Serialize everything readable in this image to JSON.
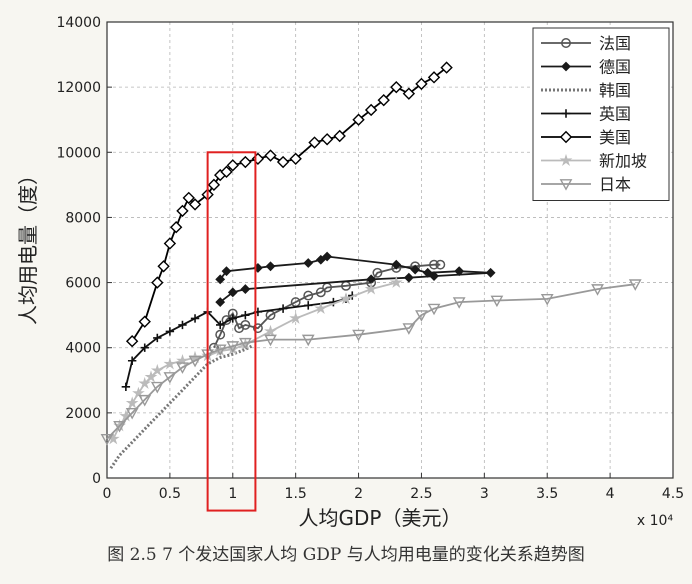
{
  "caption": "图 2.5 7 个发达国家人均 GDP 与人均用电量的变化关系趋势图",
  "chart_data": {
    "type": "line",
    "title": "",
    "xlabel": "人均GDP（美元）",
    "ylabel": "人均用电量（度）",
    "x_scale_note": "x 10⁴",
    "xlim": [
      0,
      4.5
    ],
    "ylim": [
      0,
      14000
    ],
    "xticks": [
      0,
      0.5,
      1,
      1.5,
      2,
      2.5,
      3,
      3.5,
      4,
      4.5
    ],
    "xtick_labels": [
      "0",
      "0.5",
      "1",
      "1.5",
      "2",
      "2.5",
      "3",
      "3.5",
      "4",
      "4.5"
    ],
    "yticks": [
      0,
      2000,
      4000,
      6000,
      8000,
      10000,
      12000,
      14000
    ],
    "ytick_labels": [
      "0",
      "2000",
      "4000",
      "6000",
      "8000",
      "10000",
      "12000",
      "14000"
    ],
    "grid": true,
    "legend_position": "top-right",
    "highlight_box": {
      "x0": 0.8,
      "x1": 1.18,
      "y0": -1000,
      "y1": 10000,
      "color": "#e02020"
    },
    "series": [
      {
        "name": "法国",
        "color": "#555555",
        "marker": "circle",
        "points": [
          [
            0.85,
            4000
          ],
          [
            0.9,
            4400
          ],
          [
            0.95,
            4850
          ],
          [
            1.0,
            5050
          ],
          [
            1.05,
            4600
          ],
          [
            1.1,
            4700
          ],
          [
            1.2,
            4600
          ],
          [
            1.3,
            5000
          ],
          [
            1.5,
            5400
          ],
          [
            1.6,
            5600
          ],
          [
            1.7,
            5700
          ],
          [
            1.75,
            5850
          ],
          [
            1.9,
            5900
          ],
          [
            2.1,
            6000
          ],
          [
            2.15,
            6300
          ],
          [
            2.3,
            6450
          ],
          [
            2.45,
            6500
          ],
          [
            2.6,
            6550
          ],
          [
            2.65,
            6550
          ]
        ]
      },
      {
        "name": "德国",
        "color": "#1a1a1a",
        "marker": "diamond-filled",
        "points": [
          [
            0.9,
            6100
          ],
          [
            0.95,
            6350
          ],
          [
            1.2,
            6450
          ],
          [
            1.3,
            6500
          ],
          [
            1.6,
            6600
          ],
          [
            1.7,
            6700
          ],
          [
            1.75,
            6800
          ],
          [
            2.3,
            6550
          ],
          [
            2.45,
            6400
          ],
          [
            2.55,
            6300
          ],
          [
            2.8,
            6350
          ],
          [
            3.05,
            6300
          ],
          [
            2.6,
            6200
          ],
          [
            2.4,
            6150
          ],
          [
            2.1,
            6100
          ],
          [
            1.1,
            5800
          ],
          [
            1.0,
            5700
          ],
          [
            0.9,
            5400
          ]
        ]
      },
      {
        "name": "韩国",
        "color": "#777777",
        "marker": "none",
        "dashed": true,
        "points": [
          [
            0.03,
            300
          ],
          [
            0.1,
            700
          ],
          [
            0.2,
            1100
          ],
          [
            0.3,
            1500
          ],
          [
            0.4,
            1900
          ],
          [
            0.5,
            2300
          ],
          [
            0.6,
            2700
          ],
          [
            0.7,
            3100
          ],
          [
            0.8,
            3500
          ],
          [
            0.9,
            3700
          ],
          [
            1.0,
            3800
          ],
          [
            1.1,
            3950
          ],
          [
            1.15,
            4050
          ]
        ]
      },
      {
        "name": "英国",
        "color": "#111111",
        "marker": "plus",
        "points": [
          [
            0.15,
            2800
          ],
          [
            0.2,
            3600
          ],
          [
            0.3,
            4000
          ],
          [
            0.4,
            4300
          ],
          [
            0.5,
            4500
          ],
          [
            0.6,
            4700
          ],
          [
            0.7,
            4900
          ],
          [
            0.8,
            5100
          ],
          [
            0.9,
            4700
          ],
          [
            1.0,
            4900
          ],
          [
            1.1,
            5000
          ],
          [
            1.2,
            5100
          ],
          [
            1.4,
            5200
          ],
          [
            1.6,
            5300
          ],
          [
            1.8,
            5400
          ],
          [
            1.9,
            5500
          ],
          [
            1.95,
            5600
          ]
        ]
      },
      {
        "name": "美国",
        "color": "#000000",
        "marker": "diamond",
        "points": [
          [
            0.2,
            4200
          ],
          [
            0.3,
            4800
          ],
          [
            0.4,
            6000
          ],
          [
            0.45,
            6500
          ],
          [
            0.5,
            7200
          ],
          [
            0.55,
            7700
          ],
          [
            0.6,
            8200
          ],
          [
            0.65,
            8600
          ],
          [
            0.7,
            8400
          ],
          [
            0.8,
            8700
          ],
          [
            0.85,
            9000
          ],
          [
            0.9,
            9300
          ],
          [
            0.95,
            9400
          ],
          [
            1.0,
            9600
          ],
          [
            1.1,
            9700
          ],
          [
            1.2,
            9800
          ],
          [
            1.3,
            9900
          ],
          [
            1.4,
            9700
          ],
          [
            1.5,
            9800
          ],
          [
            1.65,
            10300
          ],
          [
            1.75,
            10400
          ],
          [
            1.85,
            10500
          ],
          [
            2.0,
            11000
          ],
          [
            2.1,
            11300
          ],
          [
            2.2,
            11600
          ],
          [
            2.3,
            12000
          ],
          [
            2.4,
            11800
          ],
          [
            2.5,
            12100
          ],
          [
            2.6,
            12300
          ],
          [
            2.7,
            12600
          ]
        ]
      },
      {
        "name": "新加坡",
        "color": "#bbbbbb",
        "marker": "star",
        "points": [
          [
            0.05,
            1200
          ],
          [
            0.1,
            1600
          ],
          [
            0.15,
            1900
          ],
          [
            0.2,
            2300
          ],
          [
            0.25,
            2600
          ],
          [
            0.3,
            2900
          ],
          [
            0.35,
            3100
          ],
          [
            0.4,
            3300
          ],
          [
            0.5,
            3500
          ],
          [
            0.6,
            3600
          ],
          [
            0.7,
            3700
          ],
          [
            0.8,
            3750
          ],
          [
            0.9,
            3900
          ],
          [
            1.0,
            3950
          ],
          [
            1.1,
            4100
          ],
          [
            1.3,
            4500
          ],
          [
            1.5,
            4900
          ],
          [
            1.7,
            5200
          ],
          [
            1.9,
            5500
          ],
          [
            2.1,
            5800
          ],
          [
            2.3,
            6000
          ]
        ]
      },
      {
        "name": "日本",
        "color": "#999999",
        "marker": "triangle-down",
        "points": [
          [
            0.0,
            1200
          ],
          [
            0.1,
            1600
          ],
          [
            0.2,
            2000
          ],
          [
            0.3,
            2400
          ],
          [
            0.4,
            2800
          ],
          [
            0.5,
            3100
          ],
          [
            0.6,
            3400
          ],
          [
            0.7,
            3600
          ],
          [
            0.8,
            3800
          ],
          [
            0.9,
            3950
          ],
          [
            1.0,
            4050
          ],
          [
            1.1,
            4150
          ],
          [
            1.3,
            4250
          ],
          [
            1.6,
            4250
          ],
          [
            2.0,
            4400
          ],
          [
            2.4,
            4600
          ],
          [
            2.5,
            5000
          ],
          [
            2.6,
            5200
          ],
          [
            2.8,
            5400
          ],
          [
            3.1,
            5450
          ],
          [
            3.5,
            5500
          ],
          [
            3.9,
            5800
          ],
          [
            4.2,
            5950
          ]
        ]
      }
    ]
  }
}
